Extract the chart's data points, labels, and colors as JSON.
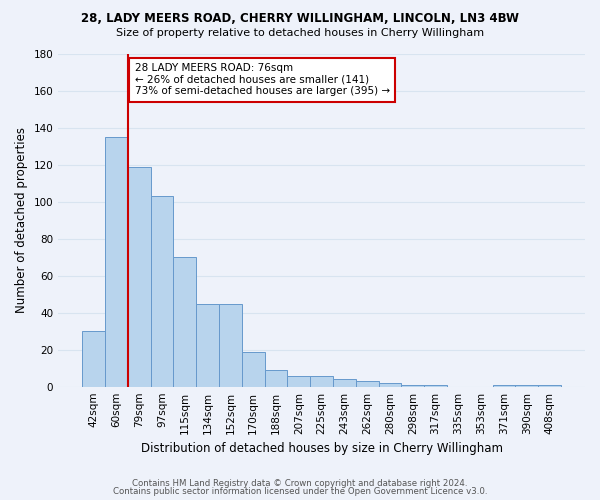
{
  "title_line1": "28, LADY MEERS ROAD, CHERRY WILLINGHAM, LINCOLN, LN3 4BW",
  "title_line2": "Size of property relative to detached houses in Cherry Willingham",
  "xlabel": "Distribution of detached houses by size in Cherry Willingham",
  "ylabel": "Number of detached properties",
  "bin_labels": [
    "42sqm",
    "60sqm",
    "79sqm",
    "97sqm",
    "115sqm",
    "134sqm",
    "152sqm",
    "170sqm",
    "188sqm",
    "207sqm",
    "225sqm",
    "243sqm",
    "262sqm",
    "280sqm",
    "298sqm",
    "317sqm",
    "335sqm",
    "353sqm",
    "371sqm",
    "390sqm",
    "408sqm"
  ],
  "bar_heights": [
    30,
    135,
    119,
    103,
    70,
    45,
    45,
    19,
    9,
    6,
    6,
    4,
    3,
    2,
    1,
    1,
    0,
    0,
    1,
    1,
    1
  ],
  "bar_color": "#b8d4ed",
  "bar_edge_color": "#6699cc",
  "annotation_title": "28 LADY MEERS ROAD: 76sqm",
  "annotation_line1": "← 26% of detached houses are smaller (141)",
  "annotation_line2": "73% of semi-detached houses are larger (395) →",
  "annotation_box_color": "#ffffff",
  "annotation_box_edge": "#cc0000",
  "vline_color": "#cc0000",
  "ylim": [
    0,
    180
  ],
  "yticks": [
    0,
    20,
    40,
    60,
    80,
    100,
    120,
    140,
    160,
    180
  ],
  "footer_line1": "Contains HM Land Registry data © Crown copyright and database right 2024.",
  "footer_line2": "Contains public sector information licensed under the Open Government Licence v3.0.",
  "bg_color": "#eef2fa",
  "grid_color": "#d8e4f0"
}
